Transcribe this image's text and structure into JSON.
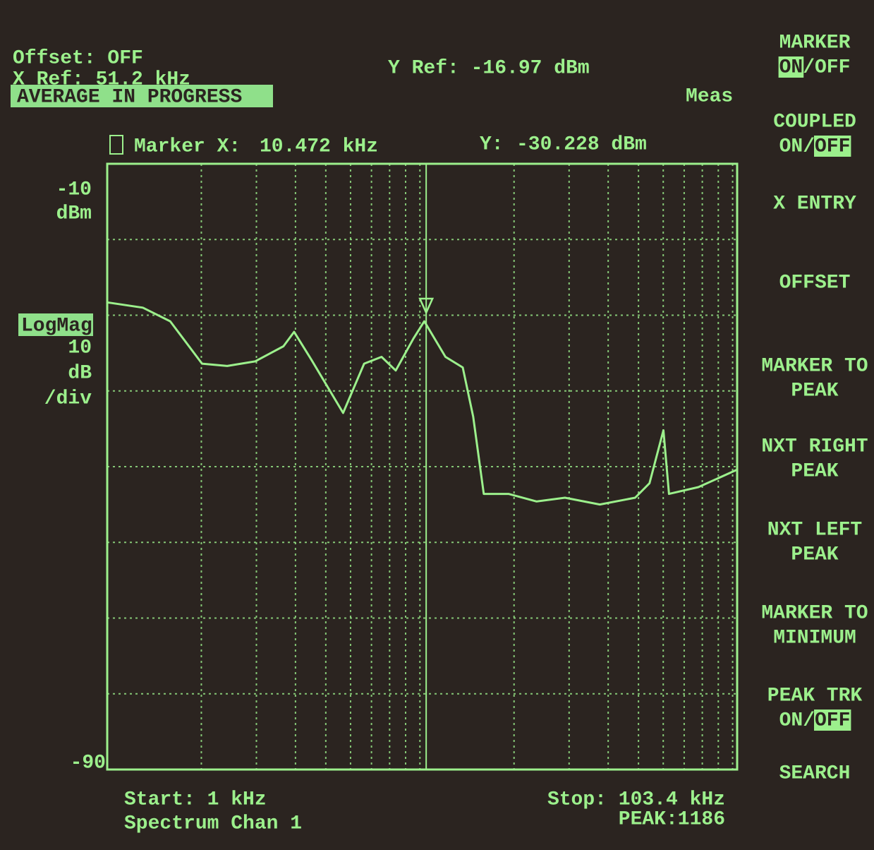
{
  "chart_data": {
    "type": "line",
    "xscale": "log",
    "xlim": [
      1,
      103.4
    ],
    "ylim": [
      -90,
      -10
    ],
    "xticks": [
      1,
      2,
      3,
      4,
      5,
      6,
      7,
      8,
      9,
      10,
      20,
      30,
      40,
      50,
      60,
      70,
      80,
      90,
      100
    ],
    "yticks": [
      -10,
      -20,
      -30,
      -40,
      -50,
      -60,
      -70,
      -80,
      -90
    ],
    "y_unit": "dBm",
    "grid": true,
    "color": "#9cf08c",
    "x": [
      1,
      1.3,
      1.59,
      2.01,
      2.42,
      2.97,
      3.66,
      3.96,
      4.5,
      5.68,
      6.63,
      7.54,
      8.37,
      9.53,
      10.33,
      12.07,
      13.71,
      14.8,
      16,
      19.2,
      23.6,
      29.1,
      37.6,
      48.8,
      54.2,
      60.1,
      62.6,
      77.7,
      103.4
    ],
    "values": [
      -28.3,
      -29,
      -30.8,
      -36.4,
      -36.7,
      -36.1,
      -34.1,
      -32.2,
      -35.9,
      -42.9,
      -36.4,
      -35.5,
      -37.3,
      -33.1,
      -30.8,
      -35.5,
      -36.9,
      -43.4,
      -53.6,
      -53.6,
      -54.6,
      -54.1,
      -55,
      -54.1,
      -52.2,
      -45.2,
      -53.6,
      -52.7,
      -50.4
    ],
    "marker": {
      "label": "Marker X:",
      "x": 10.472,
      "x_label": "10.472 kHz",
      "y_caption": "Y:",
      "y": -30.228,
      "y_label": "-30.228 dBm"
    }
  },
  "screen": {
    "offset": "Offset: OFF",
    "x_ref": "X Ref: 51.2 kHz",
    "status": "AVERAGE IN PROGRESS",
    "y_ref": "Y Ref: -16.97 dBm",
    "meas": "Meas",
    "format": "LogMag",
    "scale_lines": [
      "10",
      "dB",
      "/div"
    ],
    "start": "Start: 1 kHz",
    "channel": "Spectrum Chan 1",
    "stop": "Stop: 103.4 kHz",
    "peak": "PEAK:1186",
    "softkeys": [
      {
        "lines": [
          "MARKER"
        ],
        "toggle": [
          "ON",
          "/",
          "OFF"
        ],
        "active": 0
      },
      {
        "lines": [
          "COUPLED"
        ],
        "toggle": [
          "ON",
          "/",
          "OFF"
        ],
        "active": 2
      },
      {
        "lines": [
          "X ENTRY"
        ]
      },
      {
        "lines": [
          "OFFSET"
        ]
      },
      {
        "lines": [
          "MARKER TO",
          "PEAK"
        ]
      },
      {
        "lines": [
          "NXT RIGHT",
          "PEAK"
        ]
      },
      {
        "lines": [
          "NXT LEFT",
          "PEAK"
        ]
      },
      {
        "lines": [
          "MARKER TO",
          "MINIMUM"
        ]
      },
      {
        "lines": [
          "PEAK TRK"
        ],
        "toggle": [
          "ON",
          "/",
          "OFF"
        ],
        "active": 2
      },
      {
        "lines": [
          "SEARCH"
        ]
      }
    ]
  }
}
